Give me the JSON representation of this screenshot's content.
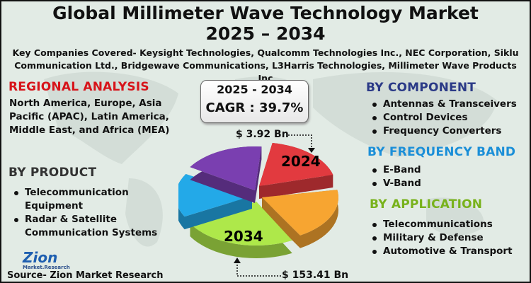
{
  "title_line1": "Global Millimeter Wave Technology Market",
  "title_line2": "2025 – 2034",
  "subtitle": "Key Companies Covered- Keysight Technologies, Qualcomm Technologies Inc., NEC Corporation, Siklu Communication Ltd., Bridgewave Communications, L3Harris Technologies, Millimeter Wave Products Inc",
  "regional": {
    "heading": "REGIONAL ANALYSIS",
    "text": "North America, Europe, Asia Pacific (APAC), Latin America, Middle East, and Africa (MEA)",
    "color": "#d7141a"
  },
  "product": {
    "heading": "BY PRODUCT",
    "items": [
      "Telecommunication Equipment",
      "Radar & Satellite Communication Systems"
    ],
    "color": "#333333"
  },
  "component": {
    "heading": "BY COMPONENT",
    "items": [
      "Antennas & Transceivers",
      "Control Devices",
      "Frequency Converters"
    ],
    "color": "#2b3a87"
  },
  "frequency": {
    "heading": "BY  FREQUENCY BAND",
    "items": [
      "E-Band",
      "V-Band"
    ],
    "color": "#1b8fd8"
  },
  "application": {
    "heading": "BY APPLICATION",
    "items": [
      "Telecommunications",
      "Military & Defense",
      "Automotive & Transport"
    ],
    "color": "#78b21c"
  },
  "cagr": {
    "period": "2025 - 2034",
    "label": "CAGR : 39.7%"
  },
  "pie": {
    "start_label": "2024",
    "end_label": "2034",
    "start_value": "$ 3.92 Bn",
    "end_value": "$ 153.41 Bn",
    "colors": [
      "#e23a3f",
      "#f7a531",
      "#aee84a",
      "#23a9e8",
      "#7a3fb0"
    ]
  },
  "logo": {
    "name": "Zion",
    "sub": "Market.Research"
  },
  "source": "Source- Zion Market Research"
}
